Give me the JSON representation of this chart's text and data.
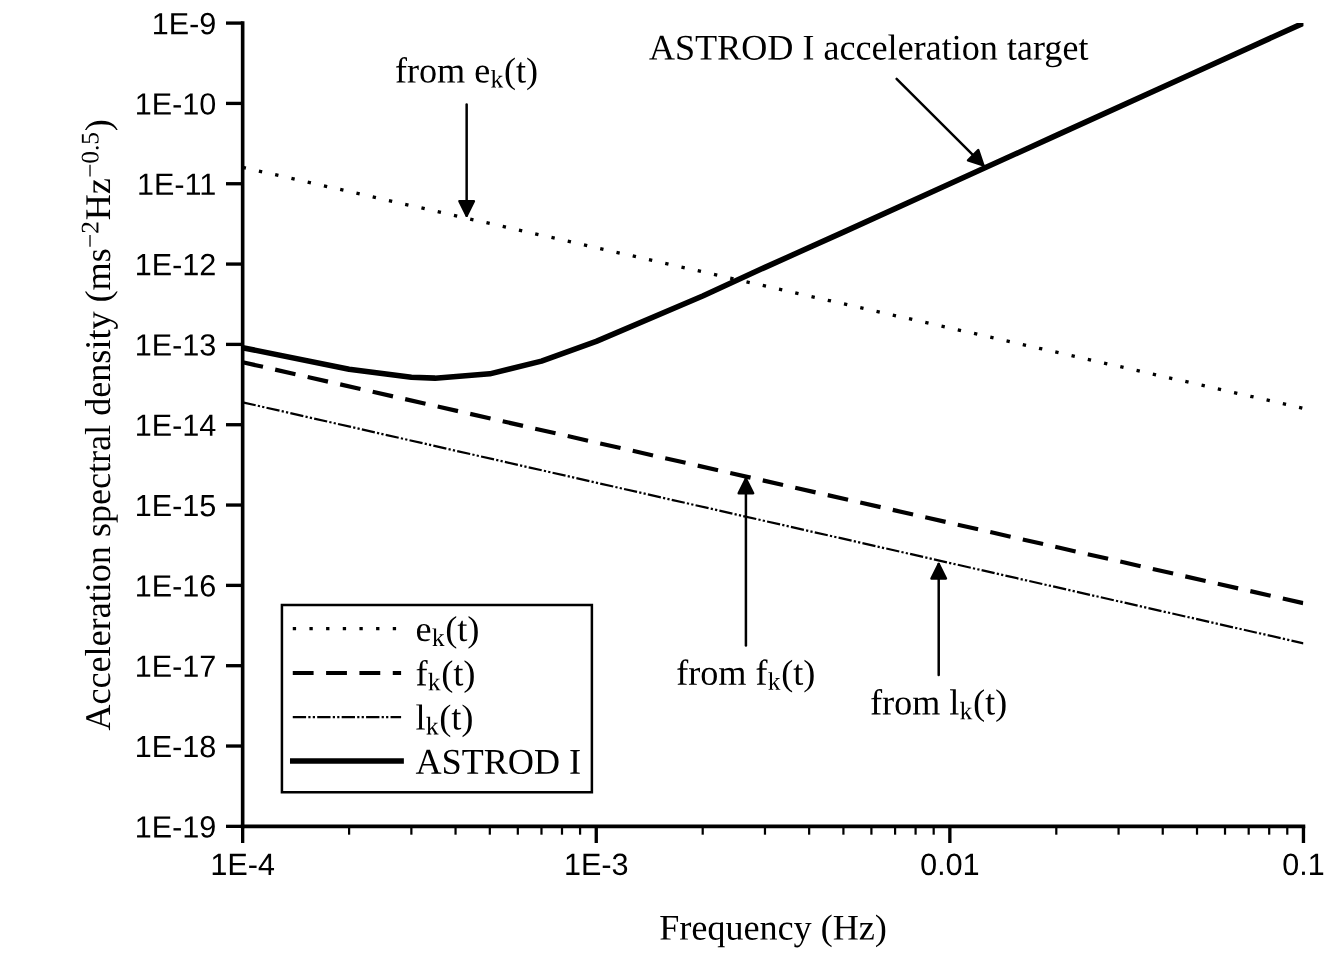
{
  "chart_data": {
    "type": "line",
    "xlabel": "Frequency (Hz)",
    "ylabel": "Acceleration spectral density (ms$^{−2}$Hz$^{−0.5}$)",
    "log": "xy",
    "xlim": [
      0.0001,
      0.1
    ],
    "ylim": [
      1e-19,
      1e-09
    ],
    "xticks": [
      {
        "value": 0.0001,
        "label": "1E-4"
      },
      {
        "value": 0.001,
        "label": "1E-3"
      },
      {
        "value": 0.01,
        "label": "0.01"
      },
      {
        "value": 0.1,
        "label": "0.1"
      }
    ],
    "yticks": [
      {
        "value": 1e-19,
        "label": "1E-19"
      },
      {
        "value": 1e-18,
        "label": "1E-18"
      },
      {
        "value": 1e-17,
        "label": "1E-17"
      },
      {
        "value": 1e-16,
        "label": "1E-16"
      },
      {
        "value": 1e-15,
        "label": "1E-15"
      },
      {
        "value": 1e-14,
        "label": "1E-14"
      },
      {
        "value": 1e-13,
        "label": "1E-13"
      },
      {
        "value": 1e-12,
        "label": "1E-12"
      },
      {
        "value": 1e-11,
        "label": "1E-11"
      },
      {
        "value": 1e-10,
        "label": "1E-10"
      },
      {
        "value": 1e-09,
        "label": "1E-9"
      }
    ],
    "grid": false,
    "legend": "bottom left",
    "series": [
      {
        "name": "e$_{k}$(t)",
        "color": "#000000",
        "line_style": "dotted",
        "x": [
          0.0001,
          0.1
        ],
        "values": [
          1.6e-11,
          1.6e-14
        ]
      },
      {
        "name": "f$_{k}$(t)",
        "color": "#000000",
        "line_style": "dashed",
        "x": [
          0.0001,
          0.1
        ],
        "values": [
          6e-14,
          6e-17
        ]
      },
      {
        "name": "l$_{k}$(t)",
        "color": "#000000",
        "line_style": "dashdot",
        "x": [
          0.0001,
          0.1
        ],
        "values": [
          1.9e-14,
          1.9e-17
        ]
      },
      {
        "name": "ASTROD I",
        "color": "#000000",
        "line_style": "solid",
        "x": [
          0.0001,
          0.0002,
          0.0003,
          0.00035,
          0.0005,
          0.0007,
          0.001,
          0.002,
          0.003,
          0.005,
          0.01,
          0.02,
          0.05,
          0.1
        ],
        "values": [
          9.1e-14,
          4.9e-14,
          3.9e-14,
          3.8e-14,
          4.3e-14,
          6.2e-14,
          1.09e-13,
          4e-13,
          9.1e-13,
          2.5e-12,
          1e-11,
          4e-11,
          2.5e-10,
          1e-09
        ]
      }
    ],
    "annotations": [
      {
        "text": "from e$_{k}$(t)",
        "x": 0.00043,
        "y": 3.7e-12
      },
      {
        "text": "ASTROD I acceleration target",
        "x": 0.0126,
        "y": 1.6e-11
      },
      {
        "text": "from f$_{k}$(t)",
        "x": 0.00265,
        "y": 2.3e-15
      },
      {
        "text": "from l$_{k}$(t)",
        "x": 0.0093,
        "y": 2e-16
      }
    ]
  }
}
